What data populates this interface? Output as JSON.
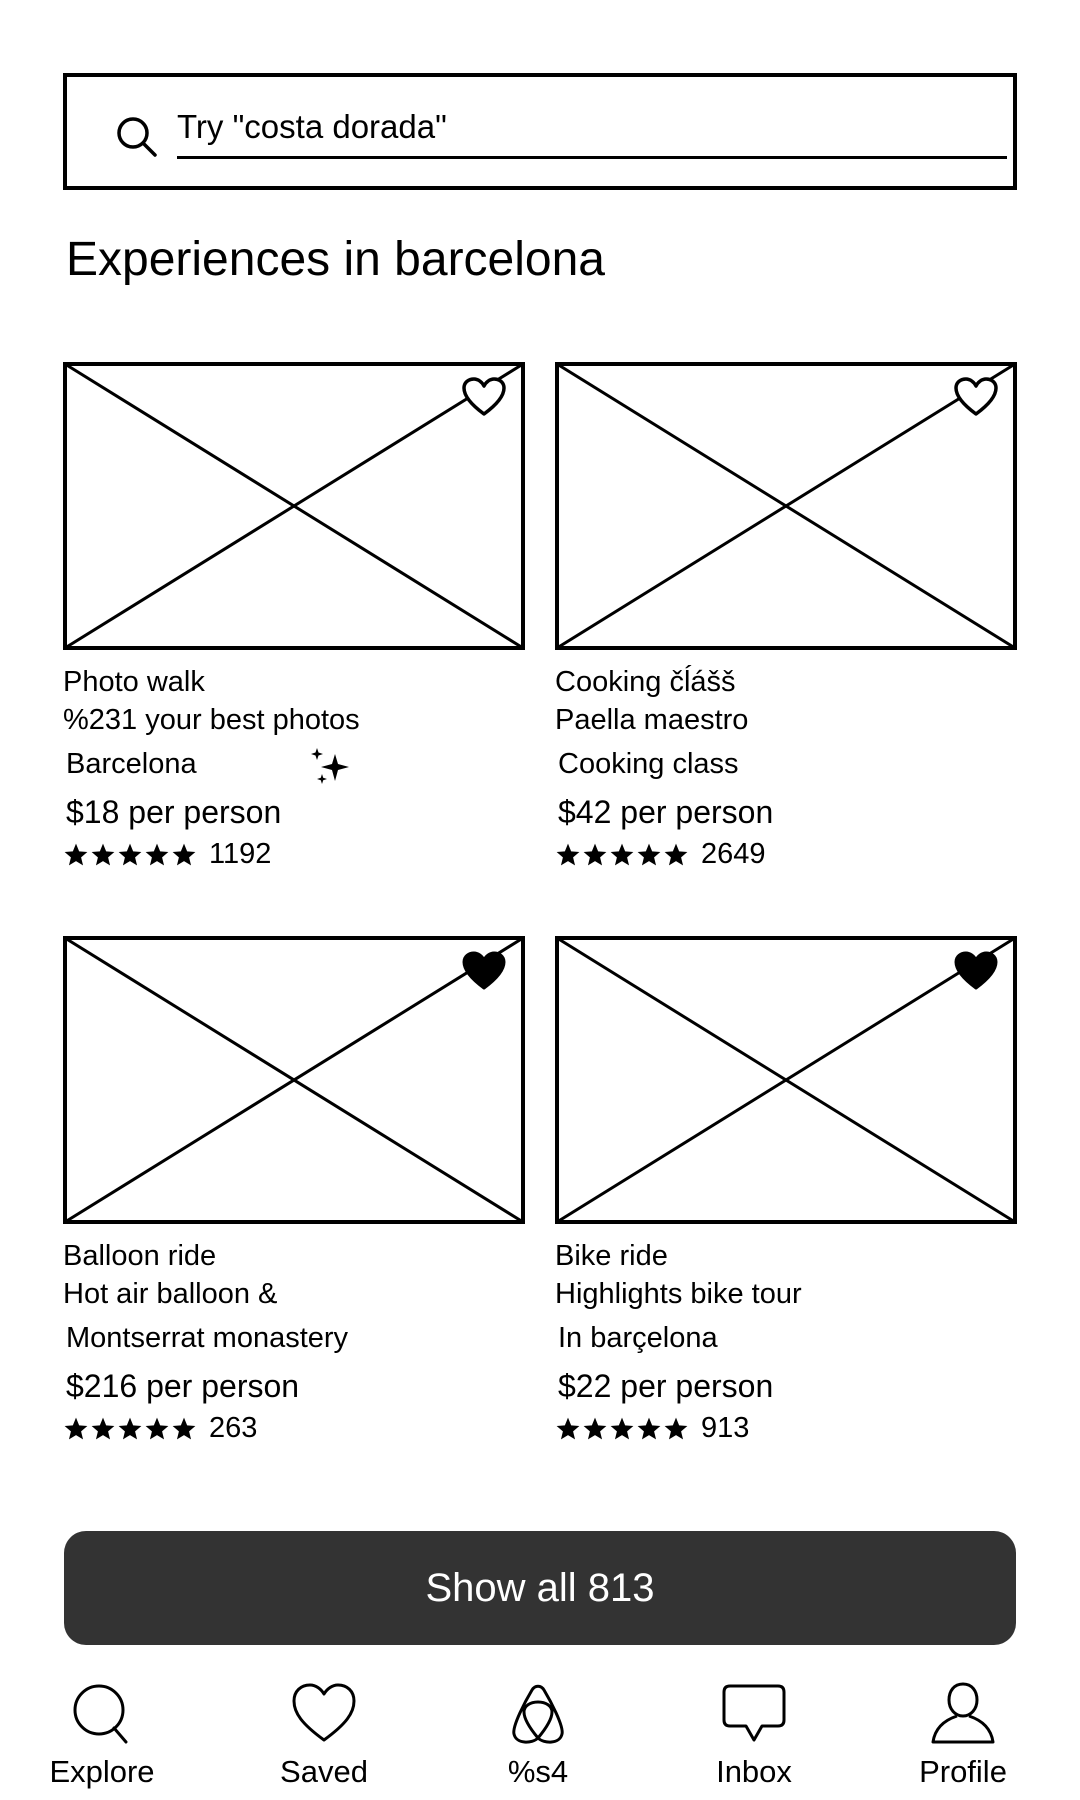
{
  "search": {
    "placeholder": "Try \"costa dorada\""
  },
  "page": {
    "title": "Experiences in barcelona"
  },
  "cards": [
    {
      "category": "Photo walk",
      "line1": "%231 your best photos",
      "line2": "Barcelona",
      "price": "$18 per person",
      "rating_stars": 5,
      "review_count": "1192",
      "favorited": false,
      "heart_icon": "heart-outline-icon",
      "extra_icon": "sparkle-icon"
    },
    {
      "category": "Cooking čĺášš",
      "line1": "Paella maestro",
      "line2": "Cooking class",
      "price": "$42 per person",
      "rating_stars": 5,
      "review_count": "2649",
      "favorited": false,
      "heart_icon": "heart-outline-icon"
    },
    {
      "category": "Balloon ride",
      "line1": "Hot air balloon &",
      "line2": "Montserrat monastery",
      "price": "$216 per person",
      "rating_stars": 5,
      "review_count": "263",
      "favorited": true,
      "heart_icon": "heart-filled-icon"
    },
    {
      "category": "Bike ride",
      "line1": "Highlights bike tour",
      "line2": "In barçelona",
      "price": "$22 per person",
      "rating_stars": 5,
      "review_count": "913",
      "favorited": true,
      "heart_icon": "heart-filled-icon"
    }
  ],
  "show_all": {
    "label": "Show all 813"
  },
  "bottom_nav": [
    {
      "label": "Explore",
      "icon": "search-icon"
    },
    {
      "label": "Saved",
      "icon": "heart-icon"
    },
    {
      "label": "%s4",
      "icon": "brand-logo-icon"
    },
    {
      "label": "Inbox",
      "icon": "chat-bubble-icon"
    },
    {
      "label": "Profile",
      "icon": "person-icon"
    }
  ],
  "colors": {
    "button_background": "#333333",
    "button_text": "#ffffff",
    "line": "#000000",
    "background": "#ffffff"
  }
}
